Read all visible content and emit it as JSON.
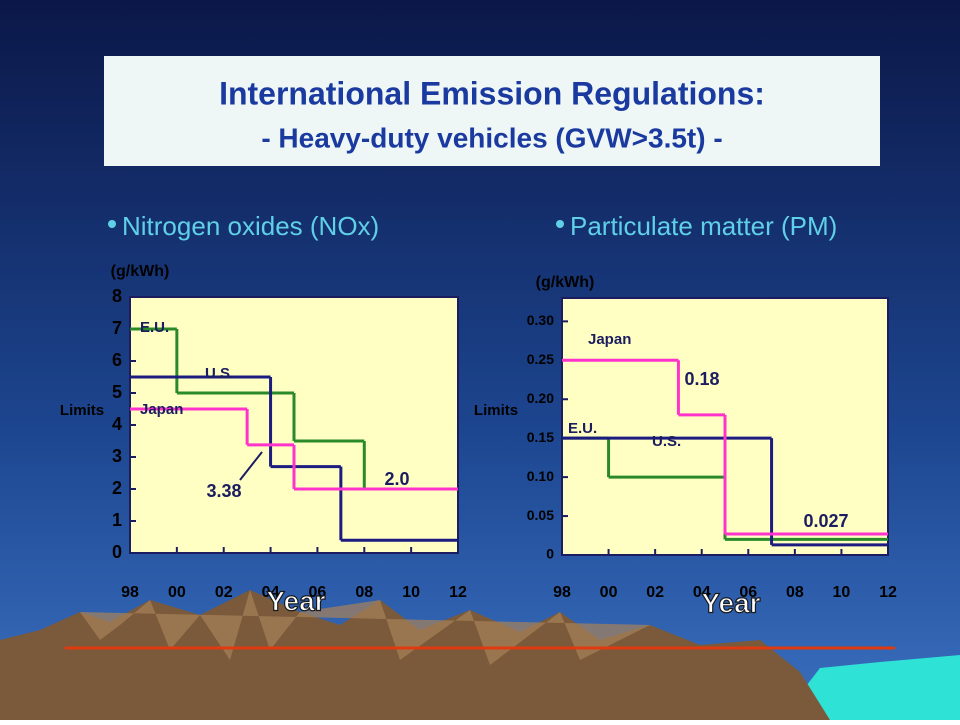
{
  "slide": {
    "title": [
      "International  Emission Regulations:",
      "- Heavy-duty vehicles (GVW>3.5t) -"
    ]
  },
  "chart_data": [
    {
      "type": "step",
      "subtitle": "Nitrogen oxides (NOx)",
      "y_unit": "(g/kWh)",
      "ylabel": "Limits",
      "xlabel": "Year",
      "xlim": [
        1998,
        2012
      ],
      "xticks": [
        {
          "value": 1998,
          "label": "98"
        },
        {
          "value": 2000,
          "label": "00"
        },
        {
          "value": 2002,
          "label": "02"
        },
        {
          "value": 2004,
          "label": "04"
        },
        {
          "value": 2006,
          "label": "06"
        },
        {
          "value": 2008,
          "label": "08"
        },
        {
          "value": 2010,
          "label": "10"
        },
        {
          "value": 2012,
          "label": "12"
        }
      ],
      "ylim": [
        0,
        8
      ],
      "yticks": [
        0,
        1,
        2,
        3,
        4,
        5,
        6,
        7,
        8
      ],
      "series": [
        {
          "name": "E.U.",
          "color": "#2a8a2a",
          "x": [
            1998,
            2000,
            2005,
            2008,
            2012
          ],
          "values": [
            7,
            5,
            3.5,
            2.0,
            2.0
          ]
        },
        {
          "name": "U.S.",
          "color": "#1c1c80",
          "x": [
            1998,
            2004,
            2007,
            2012
          ],
          "values": [
            5.5,
            2.7,
            0.4,
            0.4
          ]
        },
        {
          "name": "Japan",
          "color": "#ff33cc",
          "x": [
            1998,
            2003,
            2005,
            2012
          ],
          "values": [
            4.5,
            3.38,
            2.0,
            2.0
          ],
          "value_labels": [
            null,
            "3.38",
            "2.0",
            null
          ]
        }
      ]
    },
    {
      "type": "step",
      "subtitle": "Particulate matter (PM)",
      "y_unit": "(g/kWh)",
      "ylabel": "Limits",
      "xlabel": "Year",
      "xlim": [
        1998,
        2012
      ],
      "xticks": [
        {
          "value": 1998,
          "label": "98"
        },
        {
          "value": 2000,
          "label": "00"
        },
        {
          "value": 2002,
          "label": "02"
        },
        {
          "value": 2004,
          "label": "04"
        },
        {
          "value": 2006,
          "label": "06"
        },
        {
          "value": 2008,
          "label": "08"
        },
        {
          "value": 2010,
          "label": "10"
        },
        {
          "value": 2012,
          "label": "12"
        }
      ],
      "ylim": [
        0,
        0.33
      ],
      "yticks": [
        0,
        0.05,
        {
          "value": 0.1,
          "label": "0.10"
        },
        0.15,
        {
          "value": 0.2,
          "label": "0.20"
        },
        0.25,
        {
          "value": 0.3,
          "label": "0.30"
        }
      ],
      "series": [
        {
          "name": "E.U.",
          "color": "#2a8a2a",
          "x": [
            1998,
            2000,
            2005,
            2012
          ],
          "values": [
            0.15,
            0.1,
            0.02,
            0.02
          ]
        },
        {
          "name": "U.S.",
          "color": "#1c1c80",
          "x": [
            1998,
            2007,
            2012
          ],
          "values": [
            0.15,
            0.013,
            0.013
          ]
        },
        {
          "name": "Japan",
          "color": "#ff33cc",
          "x": [
            1998,
            2003,
            2005,
            2012
          ],
          "values": [
            0.25,
            0.18,
            0.027,
            0.027
          ],
          "value_labels": [
            null,
            "0.18",
            "0.027",
            null
          ]
        }
      ]
    }
  ]
}
